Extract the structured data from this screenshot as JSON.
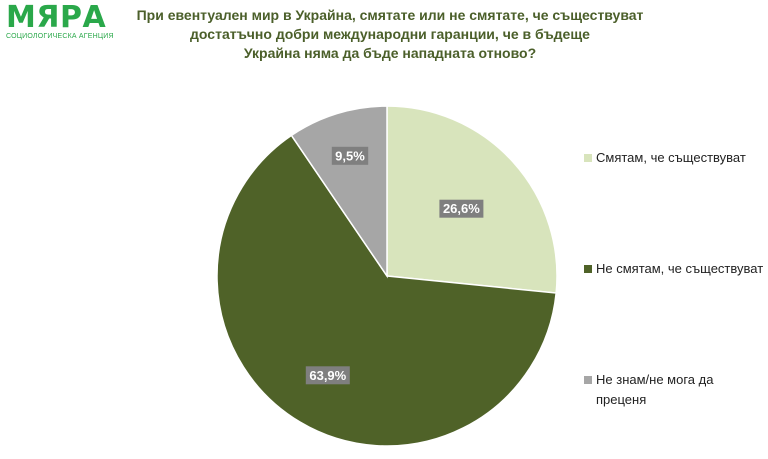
{
  "logo": {
    "word": "МЯРА",
    "subtitle": "СОЦИОЛОГИЧЕСКА АГЕНЦИЯ"
  },
  "title_lines": [
    "При евентуален мир в Украйна, смятате или не смятате, че съществуват",
    "достатъчно добри международни гаранции, че в бъдеще",
    "Украйна няма да бъде нападната отново?"
  ],
  "colors": {
    "brand": "#2aa84a",
    "title": "#4b5f2a",
    "slice_yes": "#d8e4bc",
    "slice_no": "#4f6228",
    "slice_dk": "#a6a6a6",
    "label_box": "#7f7f7f"
  },
  "chart_data": {
    "type": "pie",
    "start": "12 o'clock, clockwise",
    "slices": [
      {
        "label": "Смятам, че съществуват",
        "value": 26.6,
        "display": "26,6%",
        "color": "#d8e4bc"
      },
      {
        "label": "Не смятам, че съществуват",
        "value": 63.9,
        "display": "63,9%",
        "color": "#4f6228"
      },
      {
        "label": "Не знам/не мога да преценя",
        "value": 9.5,
        "display": "9,5%",
        "color": "#a6a6a6"
      }
    ],
    "legend_position": "right"
  }
}
